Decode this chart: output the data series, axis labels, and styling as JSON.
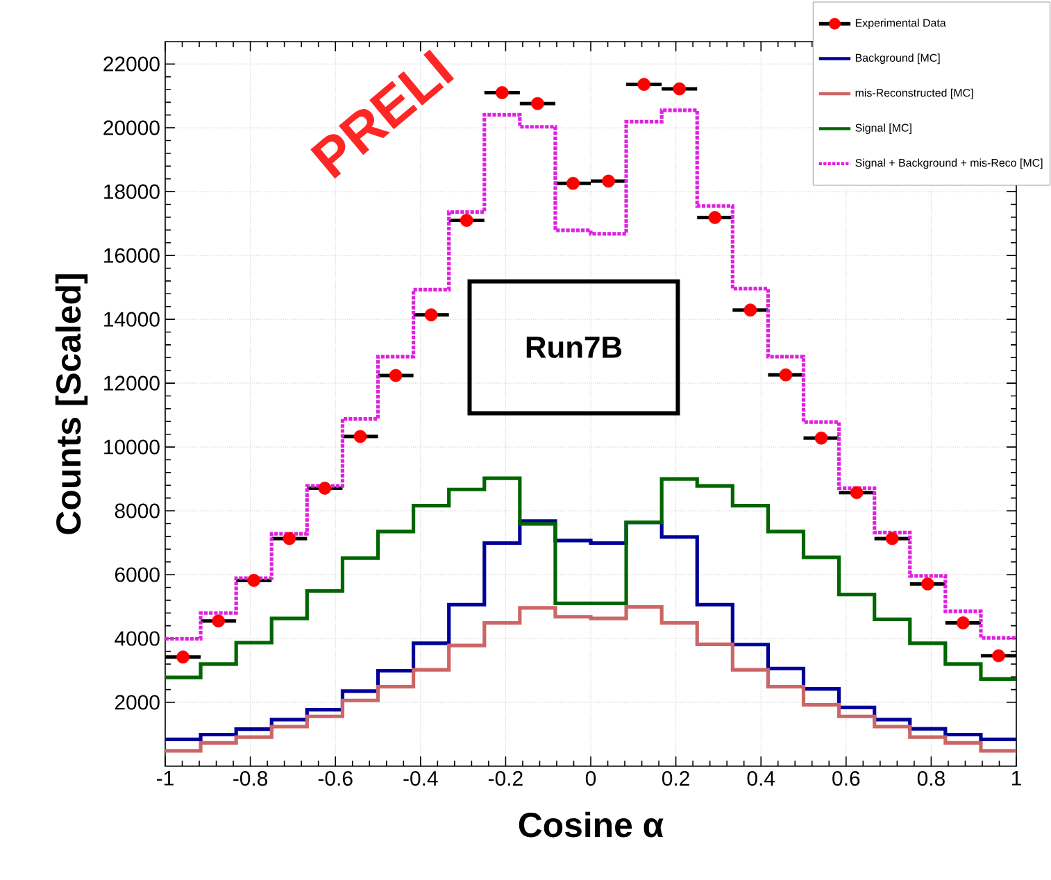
{
  "chart_data": {
    "type": "histogram",
    "xlabel": "Cosine α",
    "ylabel": "Counts [Scaled]",
    "bins": [
      -1,
      -0.9167,
      -0.8333,
      -0.75,
      -0.6667,
      -0.5833,
      -0.5,
      -0.4167,
      -0.3333,
      -0.25,
      -0.1667,
      -0.0833,
      0,
      0.0833,
      0.1667,
      0.25,
      0.3333,
      0.4167,
      0.5,
      0.5833,
      0.6667,
      0.75,
      0.8333,
      0.9167,
      1
    ],
    "series": [
      {
        "name": "Experimental Data",
        "type": "scatter",
        "marker": "circle",
        "color": "#ff0000",
        "x": [
          -0.9583,
          -0.875,
          -0.7917,
          -0.7083,
          -0.625,
          -0.5417,
          -0.4583,
          -0.375,
          -0.2917,
          -0.2083,
          -0.125,
          -0.0417,
          0.0417,
          0.125,
          0.2083,
          0.2917,
          0.375,
          0.4583,
          0.5417,
          0.625,
          0.7083,
          0.7917,
          0.875,
          0.9583
        ],
        "values": [
          3420,
          4550,
          5820,
          7130,
          8710,
          10330,
          12240,
          14140,
          17100,
          21100,
          20760,
          18260,
          18330,
          21360,
          21220,
          17190,
          14290,
          12260,
          10280,
          8570,
          7130,
          5710,
          4490,
          3460
        ],
        "xerrors": [
          0.0417,
          0.0417,
          0.0417,
          0.0417,
          0.0417,
          0.0417,
          0.0417,
          0.0417,
          0.0417,
          0.0417,
          0.0417,
          0.0417,
          0.0417,
          0.0417,
          0.0417,
          0.0417,
          0.0417,
          0.0417,
          0.0417,
          0.0417,
          0.0417,
          0.0417,
          0.0417,
          0.0417
        ]
      },
      {
        "name": "Background [MC]",
        "color": "#000099",
        "values": [
          840,
          990,
          1160,
          1460,
          1770,
          2350,
          2990,
          3850,
          5060,
          6990,
          7680,
          7070,
          6990,
          7640,
          7180,
          5060,
          3810,
          3060,
          2420,
          1840,
          1460,
          1170,
          990,
          840
        ]
      },
      {
        "name": "mis-Reconstructed [MC]",
        "color": "#cc6666",
        "values": [
          480,
          730,
          910,
          1240,
          1560,
          2060,
          2490,
          3020,
          3780,
          4490,
          4960,
          4680,
          4630,
          4990,
          4490,
          3820,
          3020,
          2490,
          1920,
          1560,
          1240,
          910,
          730,
          480
        ]
      },
      {
        "name": "Signal [MC]",
        "color": "#006600",
        "values": [
          2780,
          3200,
          3870,
          4630,
          5490,
          6520,
          7350,
          8160,
          8670,
          9020,
          7590,
          5100,
          5100,
          7640,
          9000,
          8780,
          8160,
          7350,
          6540,
          5380,
          4600,
          3850,
          3200,
          2730
        ]
      },
      {
        "name": "Signal + Background + mis-Reco [MC]",
        "color": "#e020e0",
        "line_style": "dotted",
        "values": [
          3990,
          4800,
          5890,
          7280,
          8780,
          10880,
          12830,
          14930,
          17360,
          20410,
          20030,
          16790,
          16680,
          20190,
          20550,
          17550,
          14960,
          12830,
          10780,
          8710,
          7320,
          5960,
          4850,
          4020
        ]
      }
    ],
    "xlim": [
      -1,
      1
    ],
    "ylim": [
      0,
      22700
    ],
    "xticks": [
      -1,
      -0.8,
      -0.6,
      -0.4,
      -0.2,
      0,
      0.2,
      0.4,
      0.6,
      0.8,
      1
    ],
    "yticks": [
      2000,
      4000,
      6000,
      8000,
      10000,
      12000,
      14000,
      16000,
      18000,
      20000,
      22000
    ],
    "grid": true,
    "legend": "top right",
    "annotations": [
      "Run7B",
      "PRELI"
    ]
  }
}
